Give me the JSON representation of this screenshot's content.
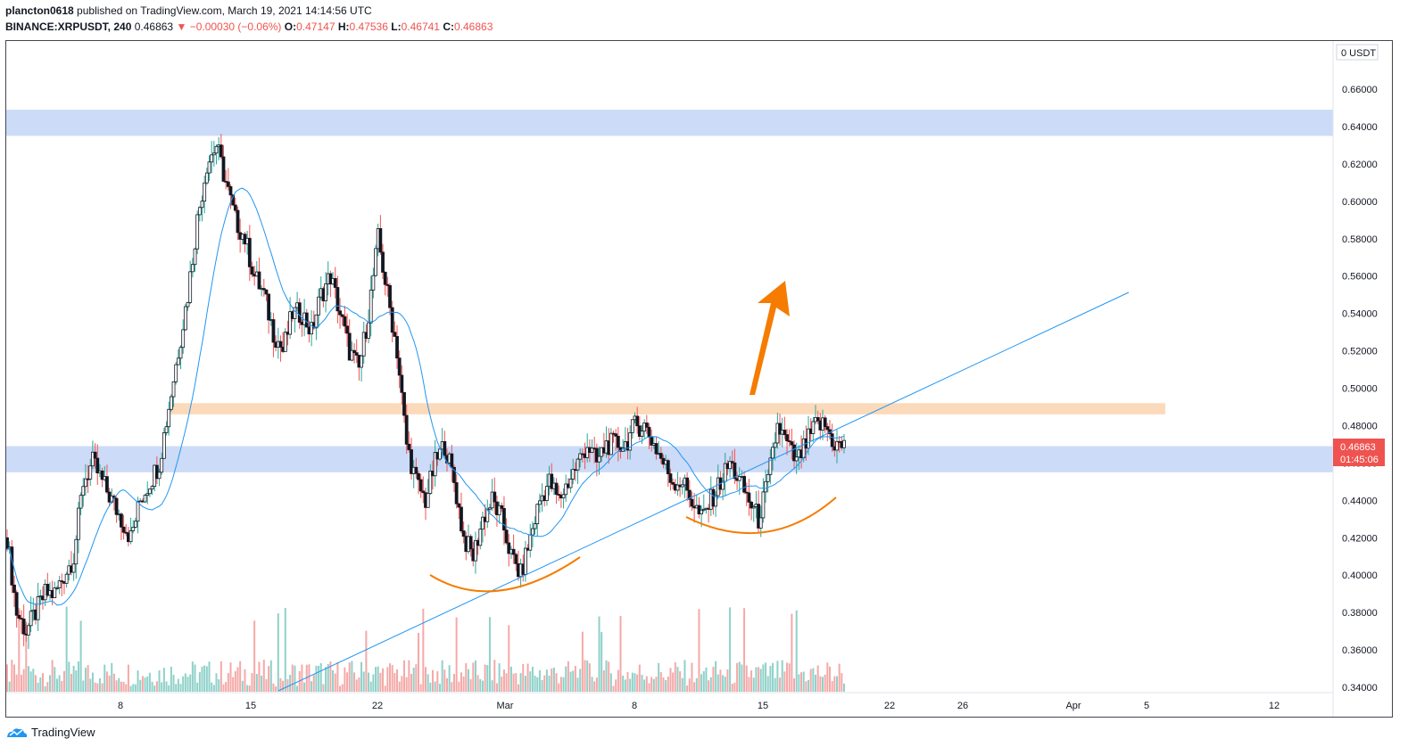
{
  "header": {
    "publisher": "plancton0618",
    "published_text": "published on TradingView.com, March 19, 2021 14:14:56 UTC",
    "symbol": "BINANCE:XRPUSDT, 240",
    "last_price": "0.46863",
    "change": "−0.00030 (−0.06%)",
    "o_label": "O:",
    "o_value": "0.47147",
    "h_label": "H:",
    "h_value": "0.47536",
    "l_label": "L:",
    "l_value": "0.46741",
    "c_label": "C:",
    "c_value": "0.46863"
  },
  "price_axis": {
    "currency_label": "0 USDT",
    "ticks": [
      "0.66000",
      "0.64000",
      "0.62000",
      "0.60000",
      "0.58000",
      "0.56000",
      "0.54000",
      "0.52000",
      "0.50000",
      "0.48000",
      "0.46000",
      "0.44000",
      "0.42000",
      "0.40000",
      "0.38000",
      "0.36000",
      "0.34000"
    ],
    "current_price": "0.46863",
    "countdown": "01:45:06"
  },
  "time_axis": {
    "ticks": [
      "8",
      "15",
      "22",
      "Mar",
      "8",
      "15",
      "22",
      "26",
      "Apr",
      "5",
      "12"
    ]
  },
  "footer": {
    "brand": "TradingView"
  },
  "colors": {
    "up": "#26a69a",
    "down": "#ef5350",
    "candle_body": "#131722",
    "ma_line": "#2196f3",
    "zone_blue": "#c9d9f7",
    "zone_orange": "#fbd8b7",
    "arrow": "#f57c00",
    "price_badge": "#ef5350"
  },
  "chart_data": {
    "type": "candlestick",
    "ylim": [
      0.335,
      0.675
    ],
    "ticks_y": [
      0.34,
      0.36,
      0.38,
      0.4,
      0.42,
      0.44,
      0.46,
      0.48,
      0.5,
      0.52,
      0.54,
      0.56,
      0.58,
      0.6,
      0.62,
      0.64,
      0.66
    ],
    "closes": [
      0.42,
      0.38,
      0.37,
      0.38,
      0.39,
      0.39,
      0.4,
      0.41,
      0.45,
      0.46,
      0.45,
      0.44,
      0.43,
      0.42,
      0.44,
      0.45,
      0.46,
      0.49,
      0.52,
      0.55,
      0.59,
      0.62,
      0.63,
      0.61,
      0.59,
      0.58,
      0.56,
      0.55,
      0.53,
      0.52,
      0.54,
      0.54,
      0.53,
      0.55,
      0.56,
      0.54,
      0.52,
      0.51,
      0.54,
      0.58,
      0.55,
      0.52,
      0.47,
      0.45,
      0.44,
      0.46,
      0.47,
      0.45,
      0.42,
      0.41,
      0.43,
      0.44,
      0.43,
      0.41,
      0.4,
      0.42,
      0.44,
      0.45,
      0.44,
      0.45,
      0.46,
      0.47,
      0.46,
      0.47,
      0.47,
      0.47,
      0.48,
      0.48,
      0.47,
      0.46,
      0.45,
      0.45,
      0.44,
      0.43,
      0.44,
      0.45,
      0.46,
      0.45,
      0.44,
      0.43,
      0.45,
      0.48,
      0.47,
      0.46,
      0.47,
      0.48,
      0.48,
      0.47,
      0.4686
    ],
    "zones": [
      {
        "kind": "resistance",
        "color": "blue",
        "from": 0.635,
        "to": 0.649
      },
      {
        "kind": "resistance",
        "color": "orange",
        "from": 0.486,
        "to": 0.492
      },
      {
        "kind": "support",
        "color": "blue",
        "from": 0.455,
        "to": 0.469
      }
    ]
  }
}
